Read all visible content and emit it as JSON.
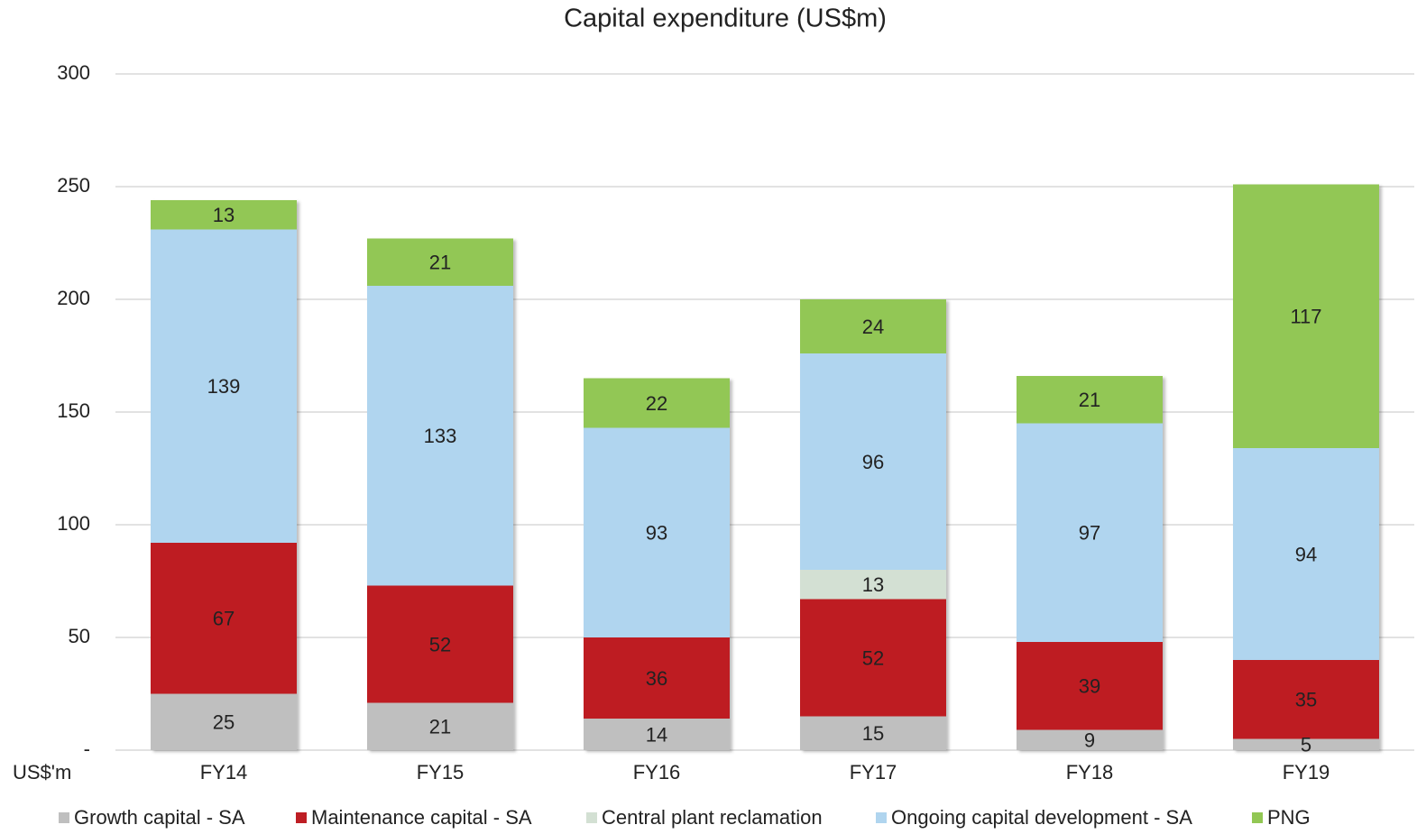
{
  "chart_data": {
    "type": "stacked_bar",
    "title": "Capital expenditure (US$m)",
    "y_label": "US$'m",
    "categories": [
      "FY14",
      "FY15",
      "FY16",
      "FY17",
      "FY18",
      "FY19"
    ],
    "series": [
      {
        "name": "Growth capital - SA",
        "color": "#bfbfbf",
        "label_color": "#222222",
        "values": [
          25,
          21,
          14,
          15,
          9,
          5
        ]
      },
      {
        "name": "Maintenance capital - SA",
        "color": "#be1e24",
        "label_color": "#ffffff",
        "values": [
          67,
          52,
          36,
          52,
          39,
          35
        ]
      },
      {
        "name": "Central plant reclamation",
        "color": "#d3e0d3",
        "label_color": "#222222",
        "values": [
          null,
          null,
          null,
          13,
          null,
          null
        ]
      },
      {
        "name": "Ongoing capital development - SA",
        "color": "#b0d5ef",
        "label_color": "#222222",
        "values": [
          139,
          133,
          93,
          96,
          97,
          94
        ]
      },
      {
        "name": "PNG",
        "color": "#92c754",
        "label_color": "#222222",
        "values": [
          13,
          21,
          22,
          24,
          21,
          117
        ]
      }
    ],
    "ylim": [
      0,
      300
    ],
    "yticks": [
      {
        "value": 0,
        "label": "-"
      },
      50,
      100,
      150,
      200,
      250,
      300
    ],
    "grid": true
  }
}
